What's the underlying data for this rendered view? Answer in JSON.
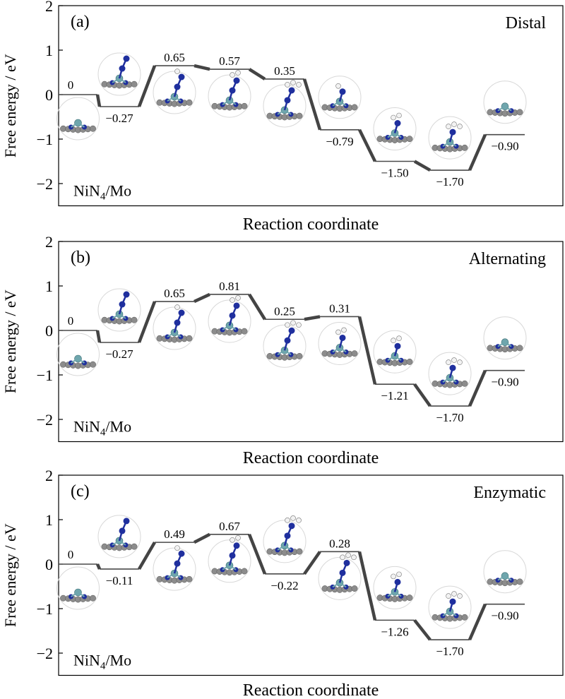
{
  "panel_common": {
    "ylabel": "Free energy / eV",
    "xlabel": "Reaction coordinate",
    "yticks": [
      "2",
      "1",
      "0",
      "−1",
      "−2"
    ],
    "ylim": [
      -2.5,
      2
    ],
    "catalyst_label": "NiN4/Mo"
  },
  "colors": {
    "level": "#4a4a4a",
    "connector": "#444444",
    "atom_n": "#1f2f9e",
    "atom_h": "#f2f2f2",
    "atom_mo": "#6fa6ad",
    "atom_c": "#8c8c8c"
  },
  "chart_data": [
    {
      "type": "line",
      "panel_label": "(a)",
      "mechanism": "Distal",
      "x": [
        1,
        2,
        3,
        4,
        5,
        6,
        7,
        8,
        9
      ],
      "values": [
        0,
        -0.27,
        0.65,
        0.57,
        0.35,
        -0.79,
        -1.5,
        -1.7,
        -0.9
      ],
      "level_labels": [
        "0",
        "−0.27",
        "0.65",
        "0.57",
        "0.35",
        "−0.79",
        "−1.50",
        "−1.70",
        "−0.90"
      ],
      "ylabel": "Free energy / eV",
      "xlabel": "Reaction coordinate",
      "ylim": [
        -2.5,
        2
      ]
    },
    {
      "type": "line",
      "panel_label": "(b)",
      "mechanism": "Alternating",
      "x": [
        1,
        2,
        3,
        4,
        5,
        6,
        7,
        8,
        9
      ],
      "values": [
        0,
        -0.27,
        0.65,
        0.81,
        0.25,
        0.31,
        -1.21,
        -1.7,
        -0.9
      ],
      "level_labels": [
        "0",
        "−0.27",
        "0.65",
        "0.81",
        "0.25",
        "0.31",
        "−1.21",
        "−1.70",
        "−0.90"
      ],
      "ylabel": "Free energy / eV",
      "xlabel": "Reaction coordinate",
      "ylim": [
        -2.5,
        2
      ]
    },
    {
      "type": "line",
      "panel_label": "(c)",
      "mechanism": "Enzymatic",
      "x": [
        1,
        2,
        3,
        4,
        5,
        6,
        7,
        8,
        9
      ],
      "values": [
        0,
        -0.11,
        0.49,
        0.67,
        -0.22,
        0.28,
        -1.26,
        -1.7,
        -0.9
      ],
      "level_labels": [
        "0",
        "−0.11",
        "0.49",
        "0.67",
        "−0.22",
        "0.28",
        "−1.26",
        "−1.70",
        "−0.90"
      ],
      "ylabel": "Free energy / eV",
      "xlabel": "Reaction coordinate",
      "ylim": [
        -2.5,
        2
      ]
    }
  ]
}
